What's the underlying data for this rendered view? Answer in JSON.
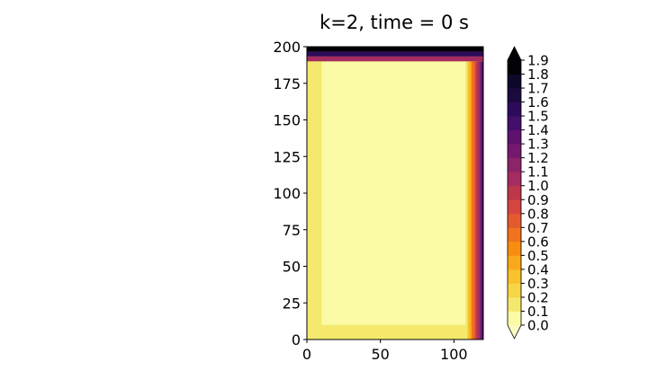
{
  "chart_data": {
    "type": "heatmap",
    "subtype": "filled-contour",
    "title": "k=2, time = 0 s",
    "xlabel": "",
    "ylabel": "",
    "xlim": [
      0,
      120
    ],
    "ylim": [
      0,
      200
    ],
    "x_ticks": [
      "0",
      "50",
      "100"
    ],
    "y_ticks": [
      "0",
      "25",
      "50",
      "75",
      "100",
      "125",
      "150",
      "175",
      "200"
    ],
    "colormap": "inferno_r",
    "colorbar": {
      "ticks": [
        "0.0",
        "0.1",
        "0.2",
        "0.3",
        "0.4",
        "0.5",
        "0.6",
        "0.7",
        "0.8",
        "0.9",
        "1.0",
        "1.1",
        "1.2",
        "1.3",
        "1.4",
        "1.5",
        "1.6",
        "1.7",
        "1.8",
        "1.9"
      ],
      "levels": [
        0.0,
        0.1,
        0.2,
        0.3,
        0.4,
        0.5,
        0.6,
        0.7,
        0.8,
        0.9,
        1.0,
        1.1,
        1.2,
        1.3,
        1.4,
        1.5,
        1.6,
        1.7,
        1.8,
        1.9
      ],
      "extend": "both",
      "colors": [
        "#fbfba5",
        "#f4e96d",
        "#f6d645",
        "#f9c22c",
        "#fba91a",
        "#f88e11",
        "#f1731d",
        "#e45a30",
        "#d3453e",
        "#bd374a",
        "#a52c60",
        "#8d2369",
        "#75196e",
        "#5d126e",
        "#440f6a",
        "#2e0a5a",
        "#1a0a3e",
        "#0d0829",
        "#030209"
      ],
      "under_color": "#fcfdbf",
      "over_color": "#000004"
    },
    "field": {
      "interior_value": 0.05,
      "left_band": {
        "x_range": [
          0,
          10
        ],
        "value": 0.15
      },
      "bottom_band": {
        "y_range": [
          0,
          10
        ],
        "value": 0.15
      },
      "right_gradient": {
        "x_range": [
          108,
          120
        ],
        "values": [
          0.15,
          0.3,
          0.45,
          0.6,
          0.75,
          0.9,
          1.05,
          1.2,
          1.4
        ]
      },
      "top_edge": {
        "y_range": [
          190,
          200
        ],
        "values": [
          1.0,
          1.5,
          1.95
        ]
      }
    }
  }
}
